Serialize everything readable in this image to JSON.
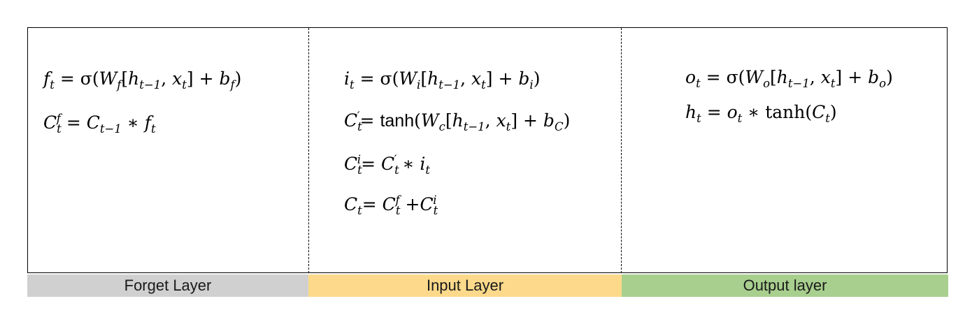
{
  "layers": {
    "forget": {
      "label": "Forget Layer",
      "color": "#d0d0d0"
    },
    "input": {
      "label": "Input Layer",
      "color": "#fcd98b"
    },
    "output": {
      "label": "Output layer",
      "color": "#a8cf8e"
    }
  },
  "equations": {
    "forget": [
      "f_t = σ(W_f[h_{t−1}, x_t] + b_f)",
      "C_t^f = C_{t−1} ∗ f_t"
    ],
    "input": [
      "i_t = σ(W_i[h_{t−1}, x_t] + b_i)",
      "C′_t = tanh(W_c[h_{t−1}, x_t] + b_C)",
      "C_t^i = C′_t ∗ i_t",
      "C_t = C_t^f + C_t^i"
    ],
    "output": [
      "o_t = σ(W_o[h_{t−1}, x_t] + b_o)",
      "h_t = o_t ∗ tanh(C_t)"
    ]
  }
}
